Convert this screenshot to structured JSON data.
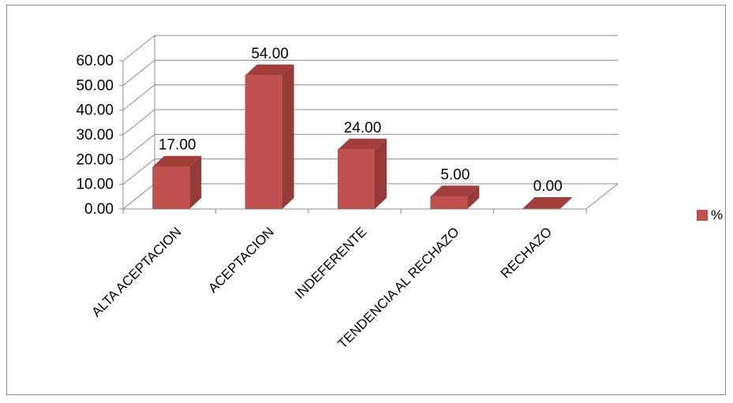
{
  "chart_data": {
    "type": "bar",
    "categories": [
      "ALTA ACEPTACION",
      "ACEPTACION",
      "INDEFERENTE",
      "TENDENCIA AL RECHAZO",
      "RECHAZO"
    ],
    "series": [
      {
        "name": "%",
        "values": [
          17.0,
          54.0,
          24.0,
          5.0,
          0.0
        ]
      }
    ],
    "data_labels": [
      "17.00",
      "54.00",
      "24.00",
      "5.00",
      "0.00"
    ],
    "y_ticks": [
      "0.00",
      "10.00",
      "20.00",
      "30.00",
      "40.00",
      "50.00",
      "60.00"
    ],
    "ylim": [
      0,
      60
    ],
    "grid": true,
    "legend_position": "right",
    "style": "3d-column",
    "colors": {
      "bar_front": "#c0504d",
      "bar_side": "#943a38",
      "bar_top": "#a23f3d",
      "grid": "#8c8c8c"
    }
  },
  "legend": {
    "label": "%"
  }
}
